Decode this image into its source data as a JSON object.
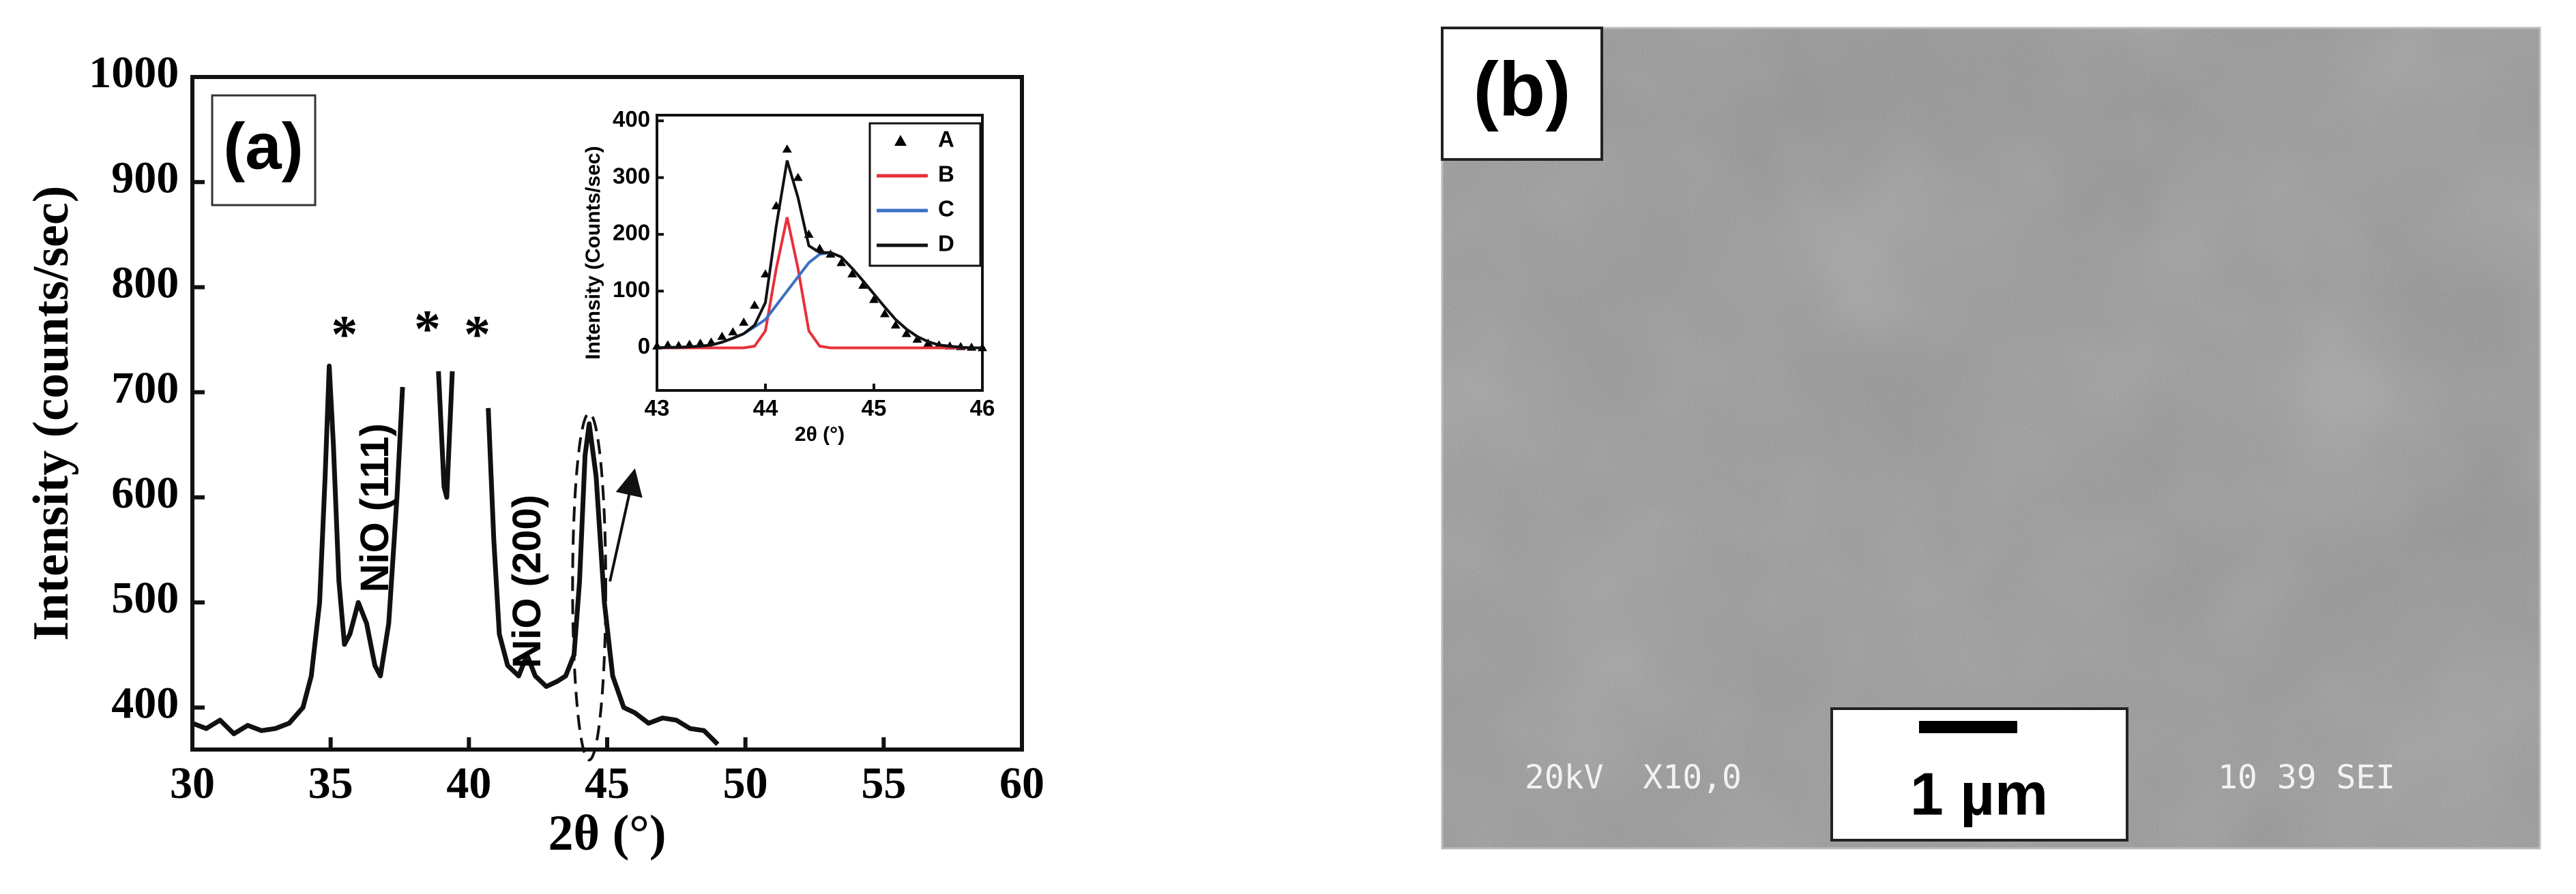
{
  "chart_data": [
    {
      "type": "line",
      "panel_label": "(a)",
      "x_label": "2θ (°)",
      "y_label": "Intensity (counts/sec)",
      "x": [
        30,
        30.5,
        31,
        31.5,
        32,
        32.5,
        33,
        33.5,
        34,
        34.3,
        34.6,
        34.8,
        34.95,
        35.1,
        35.3,
        35.5,
        35.7,
        36,
        36.3,
        36.6,
        36.8,
        37.1,
        37.4,
        37.6,
        38.3,
        38.9,
        39.1,
        39.2,
        39.4,
        40,
        40.7,
        40.9,
        41.1,
        41.4,
        41.8,
        42.1,
        42.4,
        42.8,
        43.2,
        43.5,
        43.8,
        44,
        44.2,
        44.35,
        44.6,
        44.9,
        45.2,
        45.6,
        46,
        46.5,
        47,
        47.5,
        48,
        48.5,
        49
      ],
      "values": [
        385,
        380,
        388,
        375,
        383,
        378,
        380,
        385,
        400,
        430,
        500,
        620,
        725,
        650,
        520,
        460,
        470,
        500,
        480,
        440,
        430,
        480,
        600,
        705,
        null,
        720,
        610,
        600,
        720,
        null,
        685,
        560,
        470,
        440,
        430,
        450,
        430,
        420,
        425,
        430,
        450,
        520,
        640,
        670,
        620,
        500,
        430,
        400,
        395,
        385,
        390,
        388,
        380,
        378,
        365
      ],
      "color": "#111111",
      "annotations": [
        "*",
        "*",
        "*",
        "NiO (111)",
        "NiO (200)"
      ],
      "xlim": [
        30,
        60
      ],
      "xticks": [
        30,
        35,
        40,
        45,
        50,
        55,
        60
      ],
      "ylim": [
        360,
        1000
      ],
      "yticks": [
        400,
        500,
        600,
        700,
        800,
        900,
        1000
      ]
    },
    {
      "type": "line",
      "x_label": "2θ (°)",
      "y_label": "Intensity (Counts/sec)",
      "x": [
        43,
        43.1,
        43.2,
        43.3,
        43.4,
        43.5,
        43.6,
        43.7,
        43.8,
        43.9,
        44,
        44.1,
        44.2,
        44.3,
        44.4,
        44.5,
        44.6,
        44.7,
        44.8,
        44.9,
        45,
        45.1,
        45.2,
        45.3,
        45.4,
        45.5,
        45.6,
        45.7,
        45.8,
        45.9,
        46
      ],
      "series": [
        {
          "name": "A",
          "color": "#000000",
          "marker": "triangle",
          "values": [
            3,
            5,
            4,
            6,
            8,
            10,
            20,
            28,
            45,
            75,
            130,
            250,
            350,
            300,
            200,
            175,
            165,
            150,
            130,
            110,
            85,
            60,
            40,
            25,
            15,
            8,
            5,
            3,
            2,
            1,
            0
          ]
        },
        {
          "name": "B",
          "color": "#e8303a",
          "values": [
            0,
            0,
            0,
            0,
            0,
            0,
            0,
            0,
            0,
            3,
            30,
            140,
            230,
            140,
            30,
            3,
            0,
            0,
            0,
            0,
            0,
            0,
            0,
            0,
            0,
            0,
            0,
            0,
            0,
            0,
            0
          ]
        },
        {
          "name": "C",
          "color": "#3a6fc4",
          "values": [
            0,
            1,
            1,
            2,
            3,
            5,
            10,
            17,
            25,
            37,
            50,
            75,
            100,
            125,
            150,
            165,
            168,
            160,
            140,
            118,
            95,
            72,
            50,
            33,
            20,
            11,
            5,
            3,
            1,
            0,
            0
          ]
        },
        {
          "name": "D",
          "color": "#111111",
          "values": [
            0,
            1,
            1,
            2,
            3,
            5,
            10,
            17,
            25,
            40,
            80,
            215,
            330,
            265,
            180,
            168,
            168,
            160,
            140,
            118,
            95,
            72,
            50,
            33,
            20,
            11,
            5,
            3,
            1,
            0,
            0
          ]
        }
      ],
      "legend": "upper right",
      "xlim": [
        43,
        46
      ],
      "xticks": [
        43,
        44,
        45,
        46
      ],
      "ylim": [
        -75,
        410
      ],
      "yticks": [
        0,
        100,
        200,
        300,
        400
      ]
    }
  ],
  "image_panel": {
    "label": "(b)",
    "scale_bar": "1 µm",
    "info_left": "20kV  X10,0",
    "info_right": "10 39 SEI"
  }
}
